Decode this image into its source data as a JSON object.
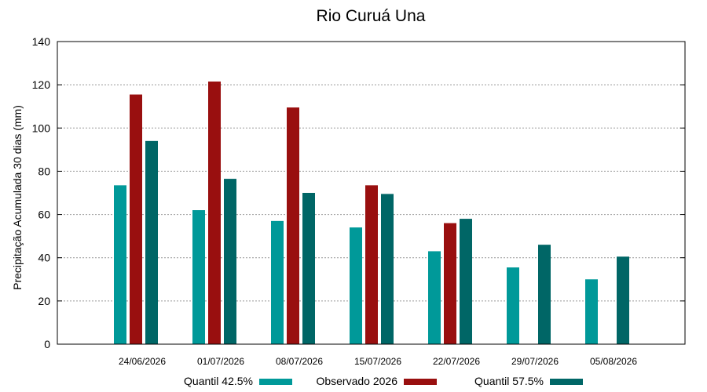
{
  "chart_data": {
    "type": "bar",
    "title": "Rio Curuá Una",
    "xlabel": "",
    "ylabel": "Precipitação Acumulada 30 dias (mm)",
    "ylim": [
      0,
      140
    ],
    "yticks": [
      0,
      20,
      40,
      60,
      80,
      100,
      120,
      140
    ],
    "grid": true,
    "legend_position": "bottom",
    "categories": [
      "24/06/2026",
      "01/07/2026",
      "08/07/2026",
      "15/07/2026",
      "22/07/2026",
      "29/07/2026",
      "05/08/2026"
    ],
    "series": [
      {
        "name": "Quantil 42.5%",
        "color": "#009999",
        "values": [
          73.5,
          62,
          57,
          54,
          43,
          35.5,
          30
        ]
      },
      {
        "name": "Observado 2026",
        "color": "#990f0f",
        "values": [
          115.5,
          121.5,
          109.5,
          73.5,
          56,
          null,
          null
        ]
      },
      {
        "name": "Quantil 57.5%",
        "color": "#006666",
        "values": [
          94,
          76.5,
          70,
          69.5,
          58,
          46,
          40.5
        ]
      }
    ]
  }
}
